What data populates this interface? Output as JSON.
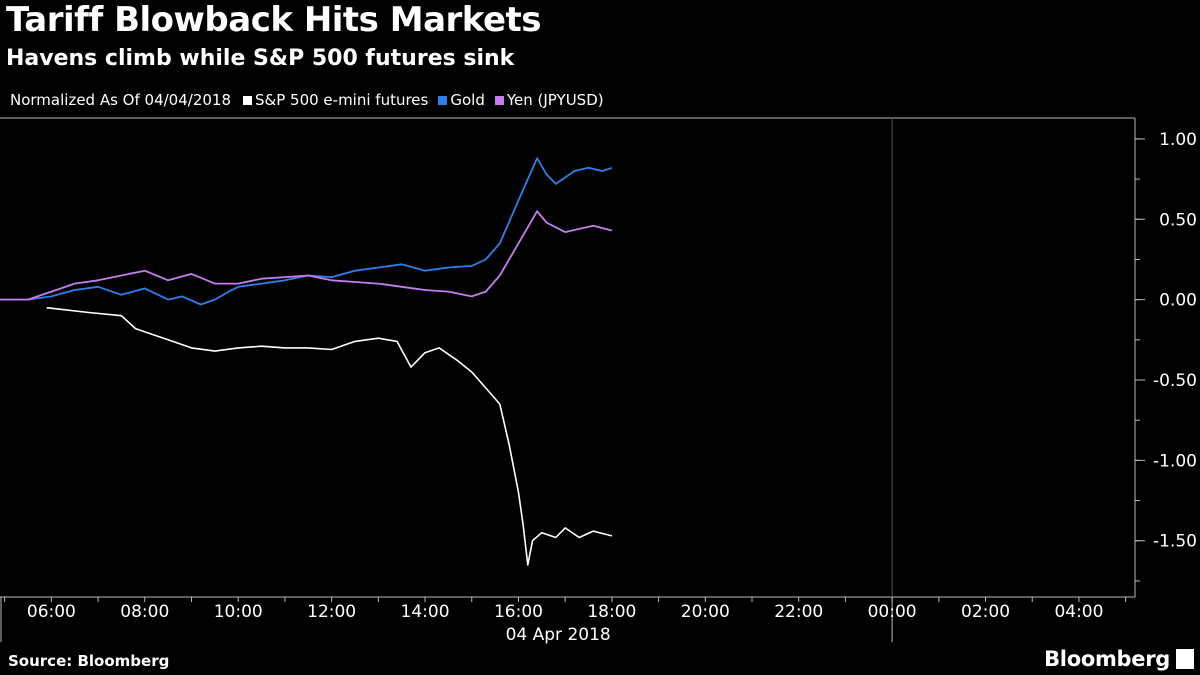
{
  "title": "Tariff Blowback Hits Markets",
  "subtitle": "Havens climb while S&P 500 futures sink",
  "legend": {
    "note": "Normalized As Of 04/04/2018",
    "items": [
      {
        "label": "S&P 500 e-mini futures",
        "color": "#ffffff"
      },
      {
        "label": "Gold",
        "color": "#2f7fe8"
      },
      {
        "label": "Yen (JPYUSD)",
        "color": "#c77cf0"
      }
    ]
  },
  "source": "Source: Bloomberg",
  "brand": "Bloomberg",
  "chart_data": {
    "type": "line",
    "x_unit": "hour of day",
    "x_range": [
      4.9,
      29.2
    ],
    "x_tick_labels": [
      "06:00",
      "08:00",
      "10:00",
      "12:00",
      "14:00",
      "16:00",
      "18:00",
      "20:00",
      "22:00",
      "00:00",
      "02:00",
      "04:00"
    ],
    "x_tick_hours": [
      6,
      8,
      10,
      12,
      14,
      16,
      18,
      20,
      22,
      24,
      26,
      28
    ],
    "x_date_label": "04 Apr 2018",
    "ylim": [
      -1.85,
      1.13
    ],
    "y_ticks": [
      1.0,
      0.5,
      0.0,
      -0.5,
      -1.0,
      -1.5
    ],
    "y_tick_labels": [
      "1.00",
      "0.50",
      "0.00",
      "-0.50",
      "-1.00",
      "-1.50"
    ],
    "series": [
      {
        "name": "Gold",
        "color": "#2f7fe8",
        "points": [
          [
            4.9,
            0.0
          ],
          [
            5.5,
            0.0
          ],
          [
            6.0,
            0.02
          ],
          [
            6.5,
            0.06
          ],
          [
            7.0,
            0.08
          ],
          [
            7.5,
            0.03
          ],
          [
            8.0,
            0.07
          ],
          [
            8.5,
            0.0
          ],
          [
            8.8,
            0.02
          ],
          [
            9.2,
            -0.03
          ],
          [
            9.5,
            0.0
          ],
          [
            9.8,
            0.05
          ],
          [
            10.0,
            0.08
          ],
          [
            10.5,
            0.1
          ],
          [
            11.0,
            0.12
          ],
          [
            11.5,
            0.15
          ],
          [
            12.0,
            0.14
          ],
          [
            12.5,
            0.18
          ],
          [
            13.0,
            0.2
          ],
          [
            13.5,
            0.22
          ],
          [
            14.0,
            0.18
          ],
          [
            14.5,
            0.2
          ],
          [
            15.0,
            0.21
          ],
          [
            15.3,
            0.25
          ],
          [
            15.6,
            0.35
          ],
          [
            15.9,
            0.55
          ],
          [
            16.2,
            0.75
          ],
          [
            16.4,
            0.88
          ],
          [
            16.6,
            0.78
          ],
          [
            16.8,
            0.72
          ],
          [
            17.0,
            0.76
          ],
          [
            17.2,
            0.8
          ],
          [
            17.5,
            0.82
          ],
          [
            17.8,
            0.8
          ],
          [
            18.0,
            0.82
          ]
        ]
      },
      {
        "name": "Yen (JPYUSD)",
        "color": "#c77cf0",
        "points": [
          [
            4.9,
            0.0
          ],
          [
            5.5,
            0.0
          ],
          [
            6.0,
            0.05
          ],
          [
            6.5,
            0.1
          ],
          [
            7.0,
            0.12
          ],
          [
            7.5,
            0.15
          ],
          [
            8.0,
            0.18
          ],
          [
            8.5,
            0.12
          ],
          [
            9.0,
            0.16
          ],
          [
            9.5,
            0.1
          ],
          [
            10.0,
            0.1
          ],
          [
            10.5,
            0.13
          ],
          [
            11.0,
            0.14
          ],
          [
            11.5,
            0.15
          ],
          [
            12.0,
            0.12
          ],
          [
            12.5,
            0.11
          ],
          [
            13.0,
            0.1
          ],
          [
            13.5,
            0.08
          ],
          [
            14.0,
            0.06
          ],
          [
            14.5,
            0.05
          ],
          [
            15.0,
            0.02
          ],
          [
            15.3,
            0.05
          ],
          [
            15.6,
            0.15
          ],
          [
            15.9,
            0.3
          ],
          [
            16.2,
            0.45
          ],
          [
            16.4,
            0.55
          ],
          [
            16.6,
            0.48
          ],
          [
            16.8,
            0.45
          ],
          [
            17.0,
            0.42
          ],
          [
            17.3,
            0.44
          ],
          [
            17.6,
            0.46
          ],
          [
            18.0,
            0.43
          ]
        ]
      },
      {
        "name": "S&P 500 e-mini futures",
        "color": "#ffffff",
        "points": [
          [
            5.9,
            -0.05
          ],
          [
            6.2,
            -0.06
          ],
          [
            6.8,
            -0.08
          ],
          [
            7.5,
            -0.1
          ],
          [
            7.8,
            -0.18
          ],
          [
            8.2,
            -0.22
          ],
          [
            8.5,
            -0.25
          ],
          [
            9.0,
            -0.3
          ],
          [
            9.5,
            -0.32
          ],
          [
            10.0,
            -0.3
          ],
          [
            10.5,
            -0.29
          ],
          [
            11.0,
            -0.3
          ],
          [
            11.5,
            -0.3
          ],
          [
            12.0,
            -0.31
          ],
          [
            12.5,
            -0.26
          ],
          [
            13.0,
            -0.24
          ],
          [
            13.4,
            -0.26
          ],
          [
            13.7,
            -0.42
          ],
          [
            14.0,
            -0.33
          ],
          [
            14.3,
            -0.3
          ],
          [
            14.7,
            -0.38
          ],
          [
            15.0,
            -0.45
          ],
          [
            15.3,
            -0.55
          ],
          [
            15.6,
            -0.65
          ],
          [
            15.8,
            -0.9
          ],
          [
            16.0,
            -1.2
          ],
          [
            16.1,
            -1.4
          ],
          [
            16.2,
            -1.65
          ],
          [
            16.3,
            -1.5
          ],
          [
            16.5,
            -1.45
          ],
          [
            16.8,
            -1.48
          ],
          [
            17.0,
            -1.42
          ],
          [
            17.3,
            -1.48
          ],
          [
            17.6,
            -1.44
          ],
          [
            18.0,
            -1.47
          ]
        ]
      }
    ]
  }
}
